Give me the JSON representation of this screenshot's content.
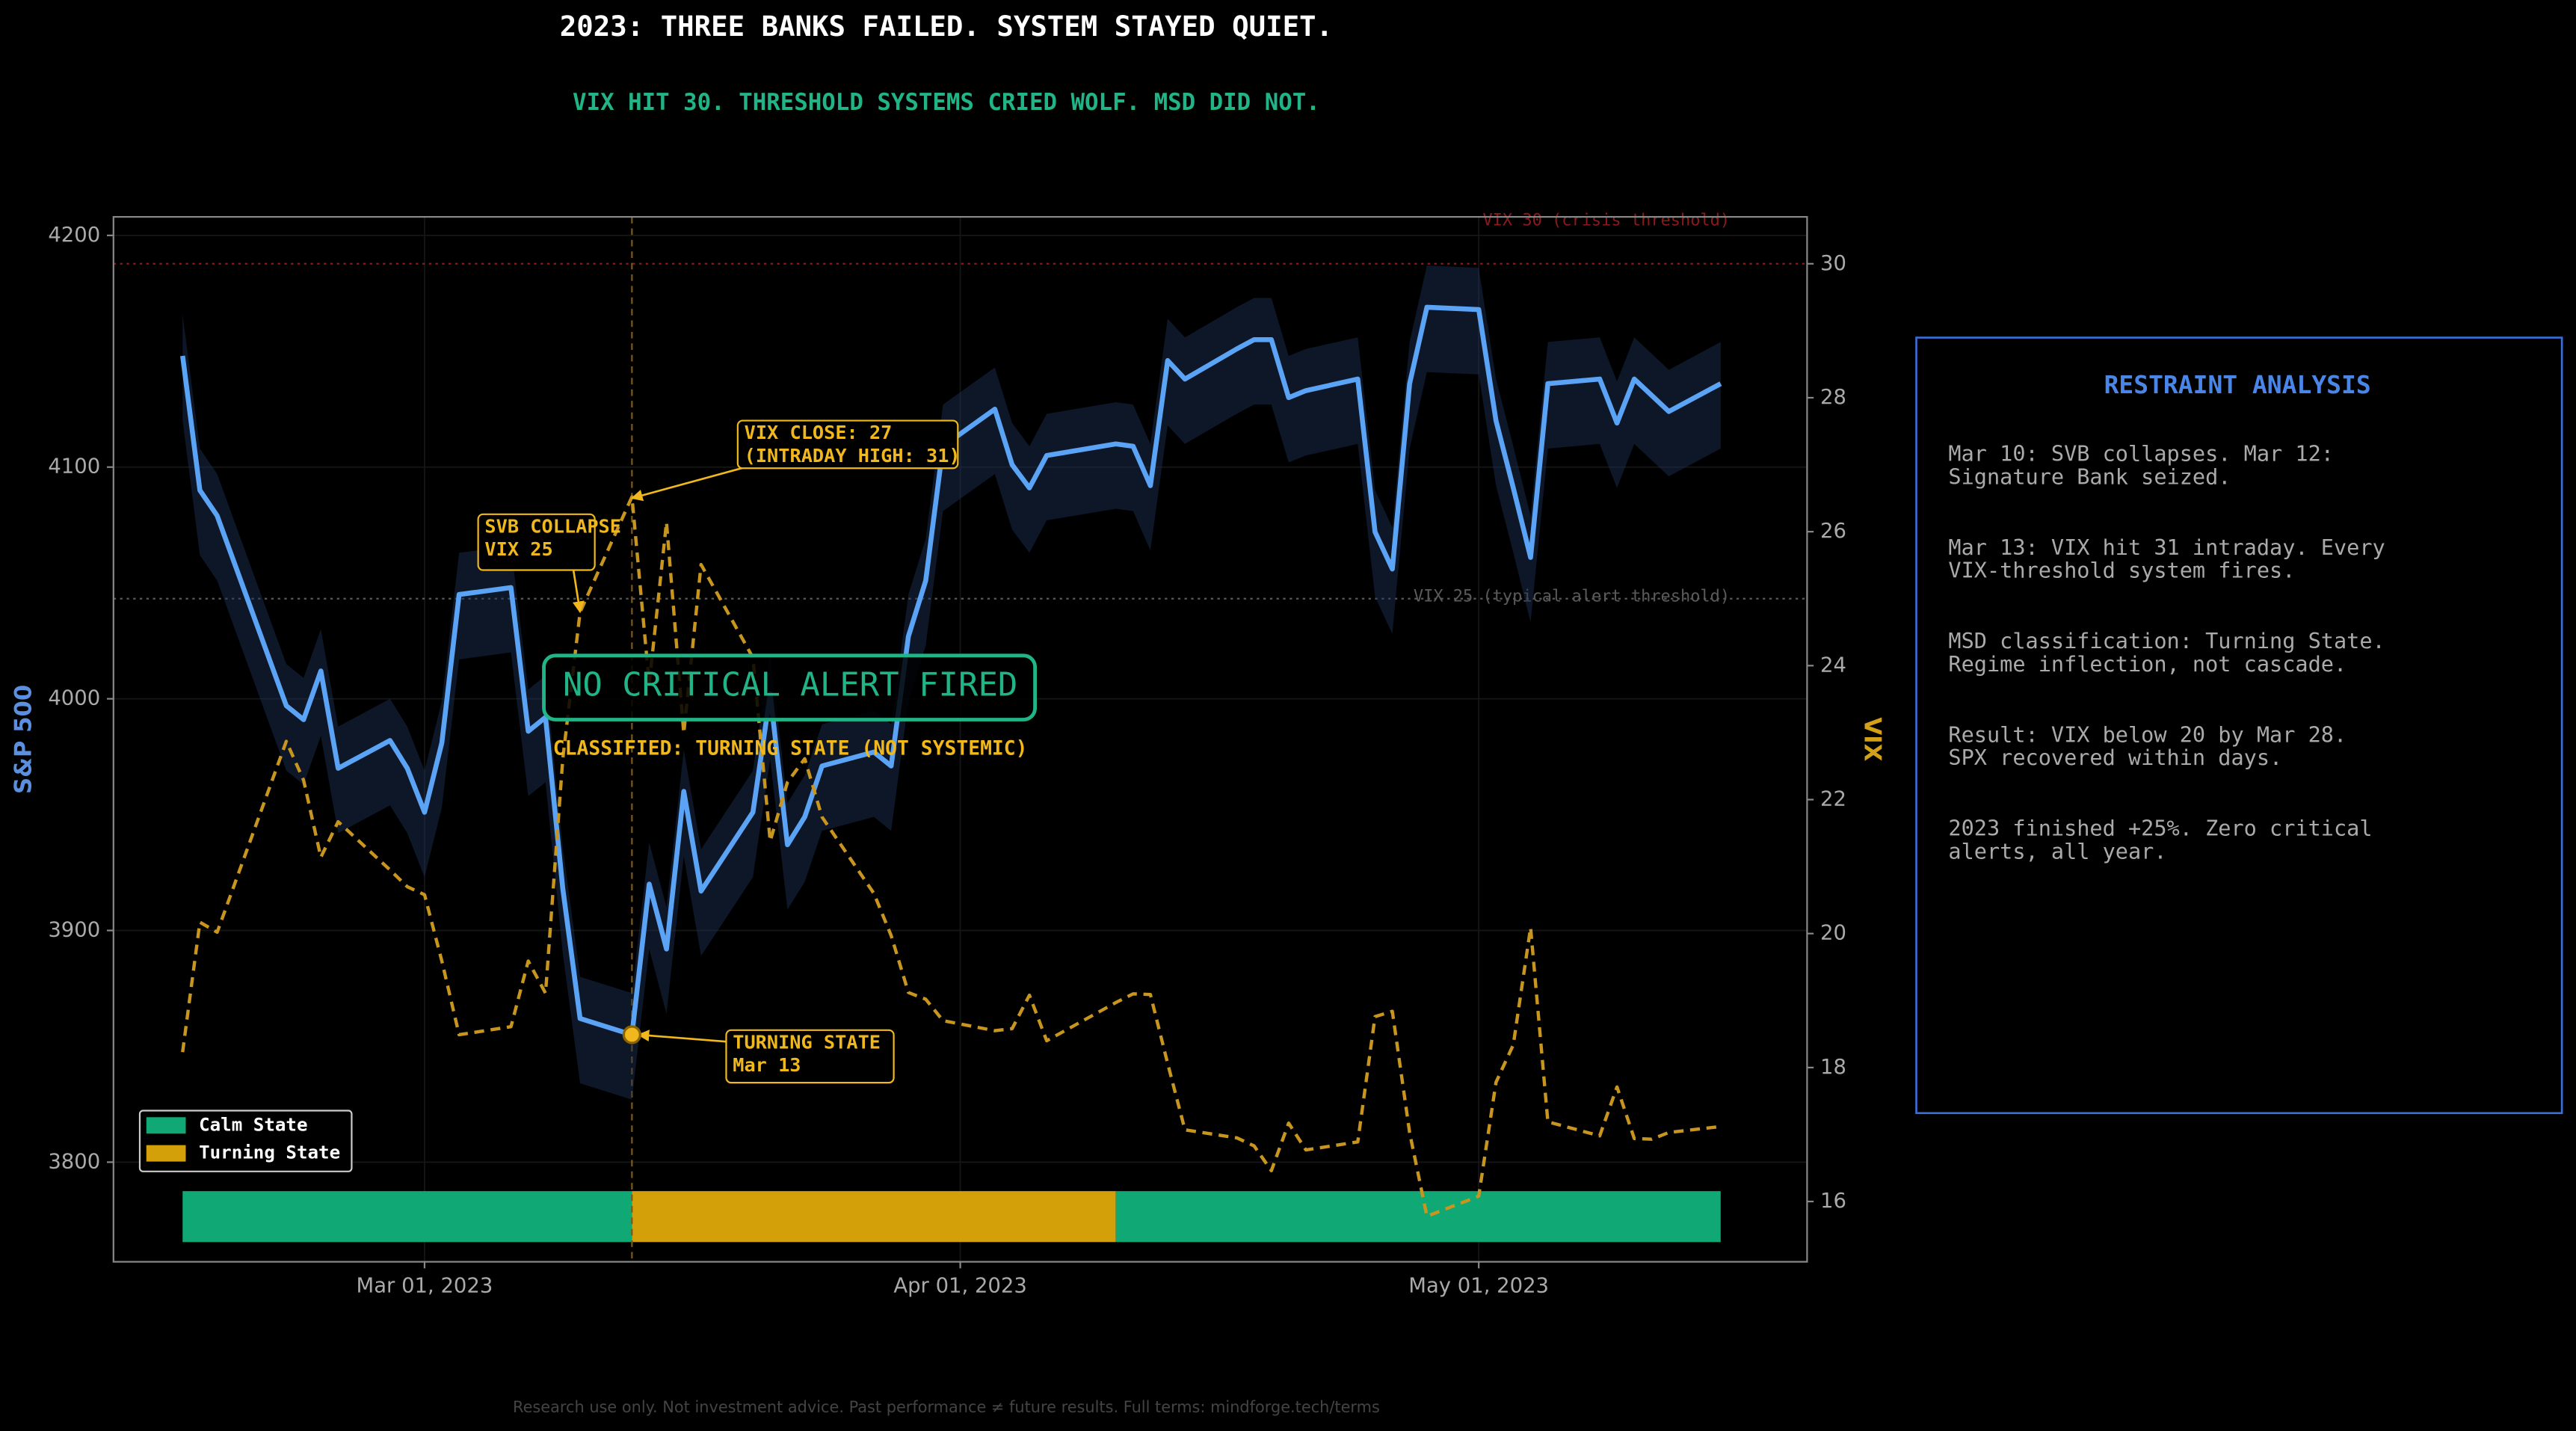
{
  "chart_data": {
    "type": "line",
    "title": "2023: THREE BANKS FAILED. SYSTEM STAYED QUIET.",
    "subtitle": "VIX HIT 30. THRESHOLD SYSTEMS CRIED WOLF. MSD DID NOT.",
    "ylabel": "S&P 500",
    "y2label": "VIX",
    "x": [
      "2023-02-15",
      "2023-02-16",
      "2023-02-17",
      "2023-02-21",
      "2023-02-22",
      "2023-02-23",
      "2023-02-24",
      "2023-02-27",
      "2023-02-28",
      "2023-03-01",
      "2023-03-02",
      "2023-03-03",
      "2023-03-06",
      "2023-03-07",
      "2023-03-08",
      "2023-03-09",
      "2023-03-10",
      "2023-03-13",
      "2023-03-14",
      "2023-03-15",
      "2023-03-16",
      "2023-03-17",
      "2023-03-20",
      "2023-03-21",
      "2023-03-22",
      "2023-03-23",
      "2023-03-24",
      "2023-03-27",
      "2023-03-28",
      "2023-03-29",
      "2023-03-30",
      "2023-03-31",
      "2023-04-03",
      "2023-04-04",
      "2023-04-05",
      "2023-04-06",
      "2023-04-10",
      "2023-04-11",
      "2023-04-12",
      "2023-04-13",
      "2023-04-14",
      "2023-04-17",
      "2023-04-18",
      "2023-04-19",
      "2023-04-20",
      "2023-04-21",
      "2023-04-24",
      "2023-04-25",
      "2023-04-26",
      "2023-04-27",
      "2023-04-28",
      "2023-05-01",
      "2023-05-02",
      "2023-05-03",
      "2023-05-04",
      "2023-05-05",
      "2023-05-08",
      "2023-05-09",
      "2023-05-10",
      "2023-05-11",
      "2023-05-12",
      "2023-05-15"
    ],
    "series": [
      {
        "color": "#5ba3f5",
        "band_color": "#1c3358",
        "values": [
          4148,
          4090,
          4079,
          3997,
          3991,
          4012,
          3970,
          3982,
          3970,
          3951,
          3981,
          4045,
          4048,
          3986,
          3992,
          3918,
          3862,
          3855,
          3920,
          3892,
          3960,
          3917,
          3951,
          4002,
          3937,
          3949,
          3971,
          3977,
          3971,
          4027,
          4051,
          4109,
          4125,
          4101,
          4091,
          4105,
          4110,
          4109,
          4092,
          4146,
          4138,
          4151,
          4155,
          4155,
          4130,
          4133,
          4138,
          4072,
          4056,
          4136,
          4169,
          4168,
          4120,
          4091,
          4061,
          4136,
          4138,
          4119,
          4138,
          4131,
          4124,
          4136
        ],
        "band_high": [
          4166,
          4108,
          4097,
          4015,
          4009,
          4030,
          3988,
          4000,
          3988,
          3969,
          3999,
          4063,
          4066,
          4004,
          4010,
          3936,
          3880,
          3873,
          3938,
          3910,
          3978,
          3935,
          3969,
          4020,
          3955,
          3967,
          3989,
          3995,
          3989,
          4045,
          4069,
          4127,
          4143,
          4119,
          4109,
          4123,
          4128,
          4127,
          4110,
          4164,
          4156,
          4169,
          4173,
          4173,
          4148,
          4151,
          4156,
          4090,
          4074,
          4154,
          4187,
          4186,
          4138,
          4109,
          4079,
          4154,
          4156,
          4137,
          4156,
          4149,
          4142,
          4154
        ],
        "band_low": [
          4120,
          4062,
          4051,
          3969,
          3963,
          3984,
          3942,
          3954,
          3942,
          3923,
          3953,
          4017,
          4020,
          3958,
          3964,
          3890,
          3834,
          3827,
          3892,
          3864,
          3932,
          3889,
          3923,
          3974,
          3909,
          3921,
          3943,
          3949,
          3943,
          3999,
          4023,
          4081,
          4097,
          4073,
          4063,
          4077,
          4082,
          4081,
          4064,
          4118,
          4110,
          4123,
          4127,
          4127,
          4102,
          4105,
          4110,
          4044,
          4028,
          4108,
          4141,
          4140,
          4092,
          4063,
          4033,
          4108,
          4110,
          4091,
          4110,
          4103,
          4096,
          4108
        ]
      },
      {
        "color": "#c8961e",
        "axis": "y2",
        "dashed": true,
        "values": [
          18.23,
          20.17,
          20.02,
          22.87,
          22.29,
          21.14,
          21.67,
          20.95,
          20.7,
          20.58,
          19.59,
          18.49,
          18.61,
          19.59,
          19.11,
          22.61,
          24.8,
          26.52,
          23.73,
          26.14,
          22.99,
          25.51,
          24.12,
          21.38,
          22.26,
          22.61,
          21.74,
          20.6,
          19.97,
          19.12,
          19.02,
          18.7,
          18.55,
          18.58,
          19.08,
          18.4,
          18.97,
          19.1,
          19.09,
          18.06,
          17.07,
          16.95,
          16.83,
          16.46,
          17.17,
          16.77,
          16.89,
          18.76,
          18.84,
          17.03,
          15.78,
          16.08,
          17.78,
          18.34,
          20.09,
          17.19,
          16.98,
          17.71,
          16.94,
          16.93,
          17.03,
          17.12
        ]
      }
    ],
    "xlim": [
      "2023-02-11",
      "2023-05-20"
    ],
    "xticks": [
      {
        "value": "2023-03-01",
        "label": "Mar 01, 2023"
      },
      {
        "value": "2023-04-01",
        "label": "Apr 01, 2023"
      },
      {
        "value": "2023-05-01",
        "label": "May 01, 2023"
      }
    ],
    "ylim": [
      3757,
      4208
    ],
    "yticks": [
      3800,
      3900,
      4000,
      4100,
      4200
    ],
    "y2lim": [
      15.1,
      30.7
    ],
    "y2ticks": [
      16,
      18,
      20,
      22,
      24,
      26,
      28,
      30
    ],
    "grid": true,
    "thresholds": [
      {
        "value": 30,
        "label": "VIX 30 (crisis threshold)",
        "color": "#8b1a1a"
      },
      {
        "value": 25,
        "label": "VIX 25 (typical alert threshold)",
        "color": "#5a5a5a"
      }
    ],
    "event_line": "2023-03-13",
    "legend": [
      {
        "name": "Calm State",
        "color": "#10a874"
      },
      {
        "name": "Turning State",
        "color": "#d4a00a"
      }
    ],
    "legend_position": "lower left",
    "regimes": [
      {
        "start": "2023-02-15",
        "end": "2023-03-13",
        "state": "Calm State"
      },
      {
        "start": "2023-03-13",
        "end": "2023-04-10",
        "state": "Turning State"
      },
      {
        "start": "2023-04-10",
        "end": "2023-05-15",
        "state": "Calm State"
      }
    ],
    "annotations": [
      {
        "lines": [
          "VIX CLOSE: 27",
          "(INTRADAY HIGH: 31)"
        ],
        "x": "2023-03-13",
        "y": 26.5,
        "axis": "y2"
      },
      {
        "lines": [
          "SVB COLLAPSE",
          "VIX 25"
        ],
        "x": "2023-03-10",
        "y": 24.8,
        "axis": "y2"
      },
      {
        "lines": [
          "TURNING STATE",
          "Mar 13"
        ],
        "x": "2023-03-13",
        "y": 3855
      }
    ],
    "callout": "NO CRITICAL ALERT FIRED",
    "classification": "CLASSIFIED: TURNING STATE (NOT SYSTEMIC)",
    "panel": {
      "title": "RESTRAINT ANALYSIS",
      "paragraphs": [
        [
          "Mar 10: SVB collapses. Mar 12:",
          "Signature Bank seized."
        ],
        [
          "Mar 13: VIX hit 31 intraday. Every",
          "VIX-threshold system fires."
        ],
        [
          "MSD classification: Turning State.",
          "Regime inflection, not cascade."
        ],
        [
          "Result: VIX below 20 by Mar 28.",
          "SPX recovered within days."
        ],
        [
          "2023 finished +25%. Zero critical",
          "alerts, all year."
        ]
      ]
    },
    "footer": "Research use only. Not investment advice. Past performance ≠ future results. Full terms: mindforge.tech/terms"
  }
}
